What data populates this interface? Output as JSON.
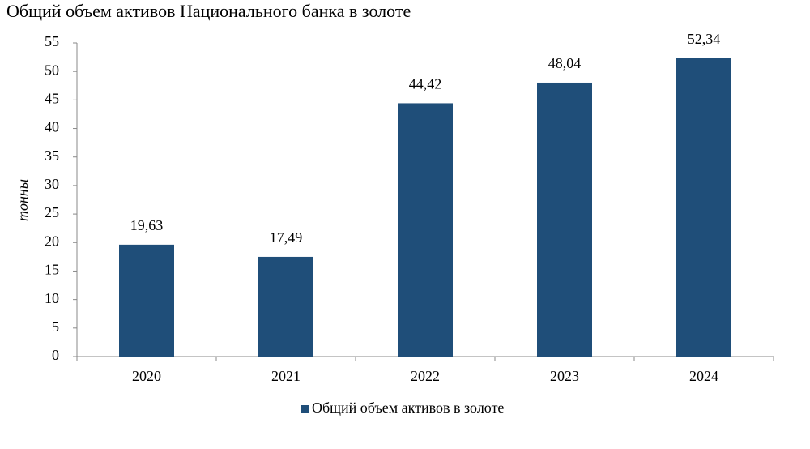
{
  "chart_data": {
    "type": "bar",
    "title": "Общий объем активов Национального банка в золоте",
    "y_label": "тонны",
    "categories": [
      "2020",
      "2021",
      "2022",
      "2023",
      "2024"
    ],
    "series": [
      {
        "name": "Общий объем активов в золоте",
        "color": "#1f4e79",
        "values": [
          19.63,
          17.49,
          44.42,
          48.04,
          52.34
        ],
        "value_labels": [
          "19,63",
          "17,49",
          "44,42",
          "48,04",
          "52,34"
        ]
      }
    ],
    "ylim": [
      0,
      55
    ],
    "yticks": [
      0,
      5,
      10,
      15,
      20,
      25,
      30,
      35,
      40,
      45,
      50,
      55
    ],
    "grid": false,
    "legend": "bottom"
  }
}
